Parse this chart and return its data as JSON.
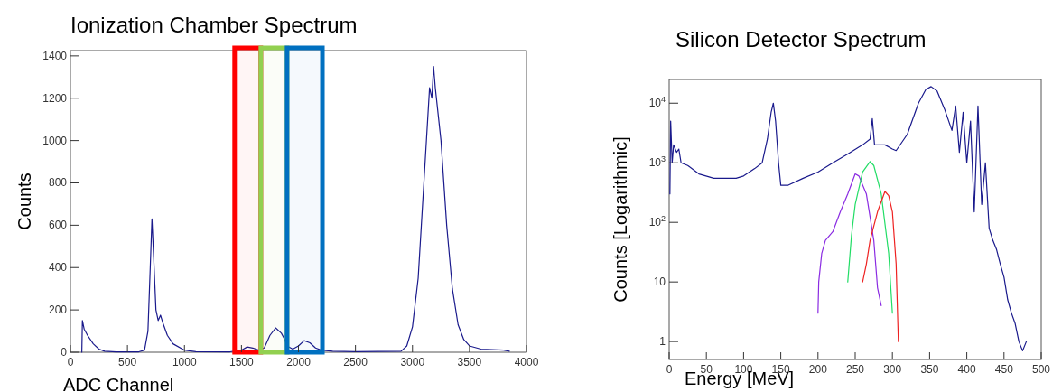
{
  "chart_data": [
    {
      "type": "line",
      "title": "Ionization Chamber Spectrum",
      "xlabel": "ADC Channel",
      "ylabel": "Counts",
      "xlim": [
        0,
        4000
      ],
      "xticks": [
        0,
        500,
        1000,
        1500,
        2000,
        2500,
        3000,
        3500,
        4000
      ],
      "ylim": [
        0,
        1425
      ],
      "yticks": [
        0,
        200,
        400,
        600,
        800,
        1000,
        1200,
        1400
      ],
      "bands": [
        {
          "axis": "x",
          "from": 1440,
          "to": 1670,
          "color": "#ff0000"
        },
        {
          "axis": "x",
          "from": 1670,
          "to": 1900,
          "color": "#92d050"
        },
        {
          "axis": "x",
          "from": 1900,
          "to": 2210,
          "color": "#0070c0"
        }
      ],
      "series": [
        {
          "color": "#1a1a8c",
          "x": [
            100,
            105,
            120,
            150,
            200,
            250,
            300,
            400,
            600,
            650,
            680,
            700,
            715,
            730,
            750,
            770,
            790,
            810,
            850,
            900,
            1000,
            1100,
            1400,
            1500,
            1550,
            1600,
            1650,
            1700,
            1750,
            1800,
            1850,
            1880,
            1900,
            1950,
            2000,
            2050,
            2100,
            2150,
            2200,
            2300,
            2500,
            2900,
            2950,
            3000,
            3050,
            3100,
            3150,
            3170,
            3185,
            3200,
            3250,
            3300,
            3350,
            3400,
            3450,
            3500,
            3600,
            3800,
            3850
          ],
          "values": [
            0,
            150,
            110,
            80,
            40,
            15,
            5,
            2,
            2,
            10,
            100,
            400,
            630,
            450,
            200,
            150,
            175,
            140,
            80,
            40,
            10,
            3,
            2,
            10,
            25,
            20,
            10,
            20,
            80,
            115,
            90,
            60,
            30,
            15,
            30,
            55,
            45,
            20,
            10,
            5,
            3,
            5,
            30,
            120,
            350,
            800,
            1250,
            1200,
            1350,
            1250,
            1000,
            600,
            300,
            130,
            60,
            30,
            15,
            10,
            5
          ]
        }
      ]
    },
    {
      "type": "line",
      "title": "Silicon Detector Spectrum",
      "xlabel": "Energy [MeV]",
      "ylabel": "Counts [Logarithmic]",
      "log": "y",
      "xlim": [
        0,
        500
      ],
      "xticks": [
        0,
        50,
        100,
        150,
        200,
        250,
        300,
        350,
        400,
        450,
        500
      ],
      "ylim": [
        0.5,
        25000
      ],
      "yticks": [
        1,
        10,
        {
          "value": 100,
          "label": "10$^{2}$"
        },
        {
          "value": 1000,
          "label": "10$^{3}$"
        },
        {
          "value": 10000,
          "label": "10$^{4}$"
        }
      ],
      "series": [
        {
          "color": "#1a1a8c",
          "x": [
            1,
            2,
            4,
            6,
            10,
            13,
            16,
            25,
            40,
            60,
            90,
            100,
            115,
            125,
            132,
            137,
            140,
            143,
            147,
            150,
            160,
            180,
            200,
            220,
            240,
            260,
            270,
            273,
            276,
            290,
            300,
            305,
            320,
            335,
            345,
            352,
            360,
            370,
            380,
            385,
            390,
            395,
            400,
            405,
            410,
            415,
            420,
            425,
            430,
            435,
            440,
            445,
            450,
            455,
            460,
            465,
            470,
            475,
            480
          ],
          "values": [
            300,
            5000,
            1000,
            2000,
            1500,
            1700,
            1000,
            900,
            650,
            550,
            550,
            600,
            800,
            1000,
            2500,
            7000,
            10000,
            5000,
            1000,
            420,
            420,
            550,
            700,
            1000,
            1400,
            2000,
            2500,
            5500,
            2000,
            2000,
            1700,
            1600,
            3000,
            10000,
            17000,
            19000,
            16000,
            8000,
            3500,
            9000,
            1500,
            7000,
            1000,
            5000,
            150,
            9000,
            200,
            1000,
            80,
            50,
            35,
            20,
            12,
            5,
            3,
            2,
            1,
            0.7,
            1
          ]
        },
        {
          "color": "#8a2be2",
          "x": [
            200,
            201,
            205,
            210,
            220,
            230,
            240,
            250,
            255,
            265,
            275,
            280,
            285
          ],
          "values": [
            3,
            10,
            30,
            50,
            70,
            150,
            300,
            650,
            600,
            300,
            50,
            8,
            4
          ]
        },
        {
          "color": "#22dd66",
          "x": [
            240,
            245,
            250,
            260,
            270,
            275,
            285,
            295,
            300
          ],
          "values": [
            10,
            60,
            200,
            700,
            1050,
            900,
            300,
            30,
            3
          ]
        },
        {
          "color": "#ee2222",
          "x": [
            260,
            265,
            270,
            280,
            290,
            295,
            300,
            305,
            308
          ],
          "values": [
            10,
            20,
            50,
            150,
            330,
            280,
            150,
            20,
            1
          ]
        }
      ]
    }
  ]
}
